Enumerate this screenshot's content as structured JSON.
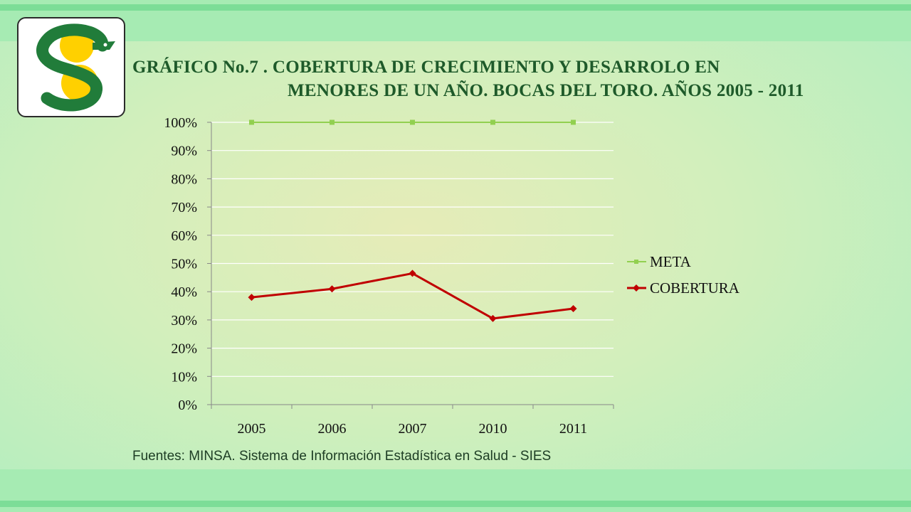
{
  "title": {
    "line1": "GRÁFICO No.7 . COBERTURA DE CRECIMIENTO Y DESARROLO EN",
    "line2": "MENORES DE UN AÑO. BOCAS DEL TORO. AÑOS 2005 - 2011"
  },
  "source": "Fuentes: MINSA. Sistema de Información Estadística en Salud - SIES",
  "logo": {
    "icon": "serpent-s-logo-icon"
  },
  "colors": {
    "meta": "#92d050",
    "cobertura": "#c00000",
    "title": "#1e5a2a"
  },
  "chart_data": {
    "type": "line",
    "categories": [
      "2005",
      "2006",
      "2007",
      "2010",
      "2011"
    ],
    "series": [
      {
        "name": "META",
        "values": [
          100,
          100,
          100,
          100,
          100
        ],
        "color": "#92d050",
        "marker": "square"
      },
      {
        "name": "COBERTURA",
        "values": [
          38,
          41,
          46.5,
          30.5,
          34
        ],
        "color": "#c00000",
        "marker": "diamond"
      }
    ],
    "y_ticks": [
      "0%",
      "10%",
      "20%",
      "30%",
      "40%",
      "50%",
      "60%",
      "70%",
      "80%",
      "90%",
      "100%"
    ],
    "ylim": [
      0,
      100
    ],
    "y_unit": "%",
    "grid": true,
    "legend_position": "right"
  }
}
